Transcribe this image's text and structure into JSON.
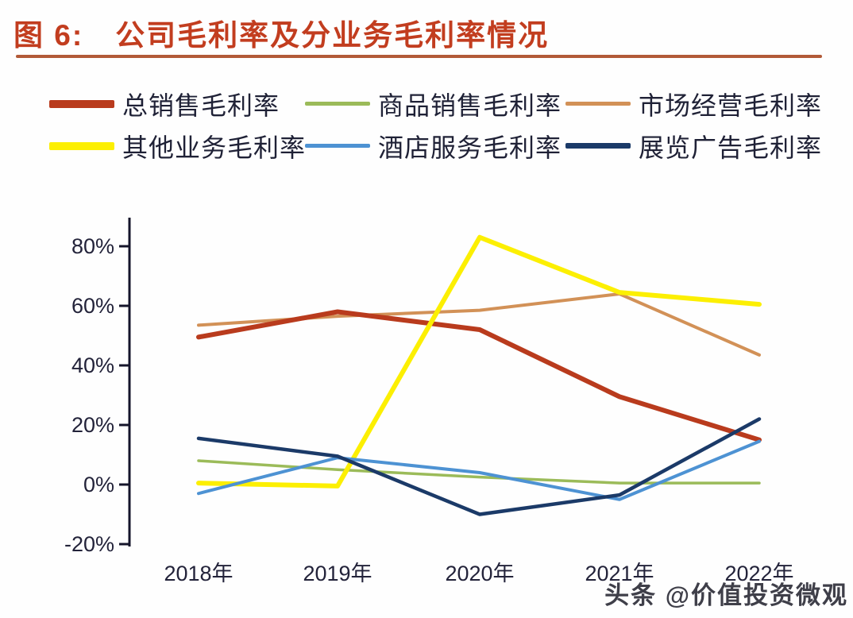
{
  "page": {
    "title_prefix": "图 6:",
    "title": "公司毛利率及分业务毛利率情况",
    "accent_color": "#C23D1F",
    "underline_color": "#B25A38"
  },
  "watermark": {
    "text": "头条 @价值投资微观"
  },
  "chart_data": {
    "type": "line",
    "title": "公司毛利率及分业务毛利率情况",
    "categories": [
      "2018年",
      "2019年",
      "2020年",
      "2021年",
      "2022年"
    ],
    "series": [
      {
        "name": "总销售毛利率",
        "color": "#B93B1D",
        "values": [
          49.5,
          58,
          52,
          29.5,
          15
        ]
      },
      {
        "name": "商品销售毛利率",
        "color": "#9BBB59",
        "values": [
          8,
          5,
          2.5,
          0.5,
          0.5
        ]
      },
      {
        "name": "市场经营毛利率",
        "color": "#D29157",
        "values": [
          53.5,
          56.5,
          58.5,
          64,
          43.5
        ]
      },
      {
        "name": "其他业务毛利率",
        "color": "#FCEF02",
        "values": [
          0.5,
          -0.5,
          83,
          64.5,
          60.5
        ]
      },
      {
        "name": "酒店服务毛利率",
        "color": "#4D92D3",
        "values": [
          -3,
          9,
          4,
          -5,
          14.5
        ]
      },
      {
        "name": "展览广告毛利率",
        "color": "#1B3A68",
        "values": [
          15.5,
          9.5,
          -10,
          -3.5,
          22
        ]
      }
    ],
    "yticks": [
      80,
      60,
      40,
      20,
      0,
      -20
    ],
    "ytick_suffix": "%",
    "ylim": [
      -21,
      90
    ],
    "xlabel": "",
    "ylabel": "",
    "grid": false,
    "legend_position": "top-left-two-rows",
    "axis_color": "#15152b",
    "tick_label_color": "#23233a"
  }
}
